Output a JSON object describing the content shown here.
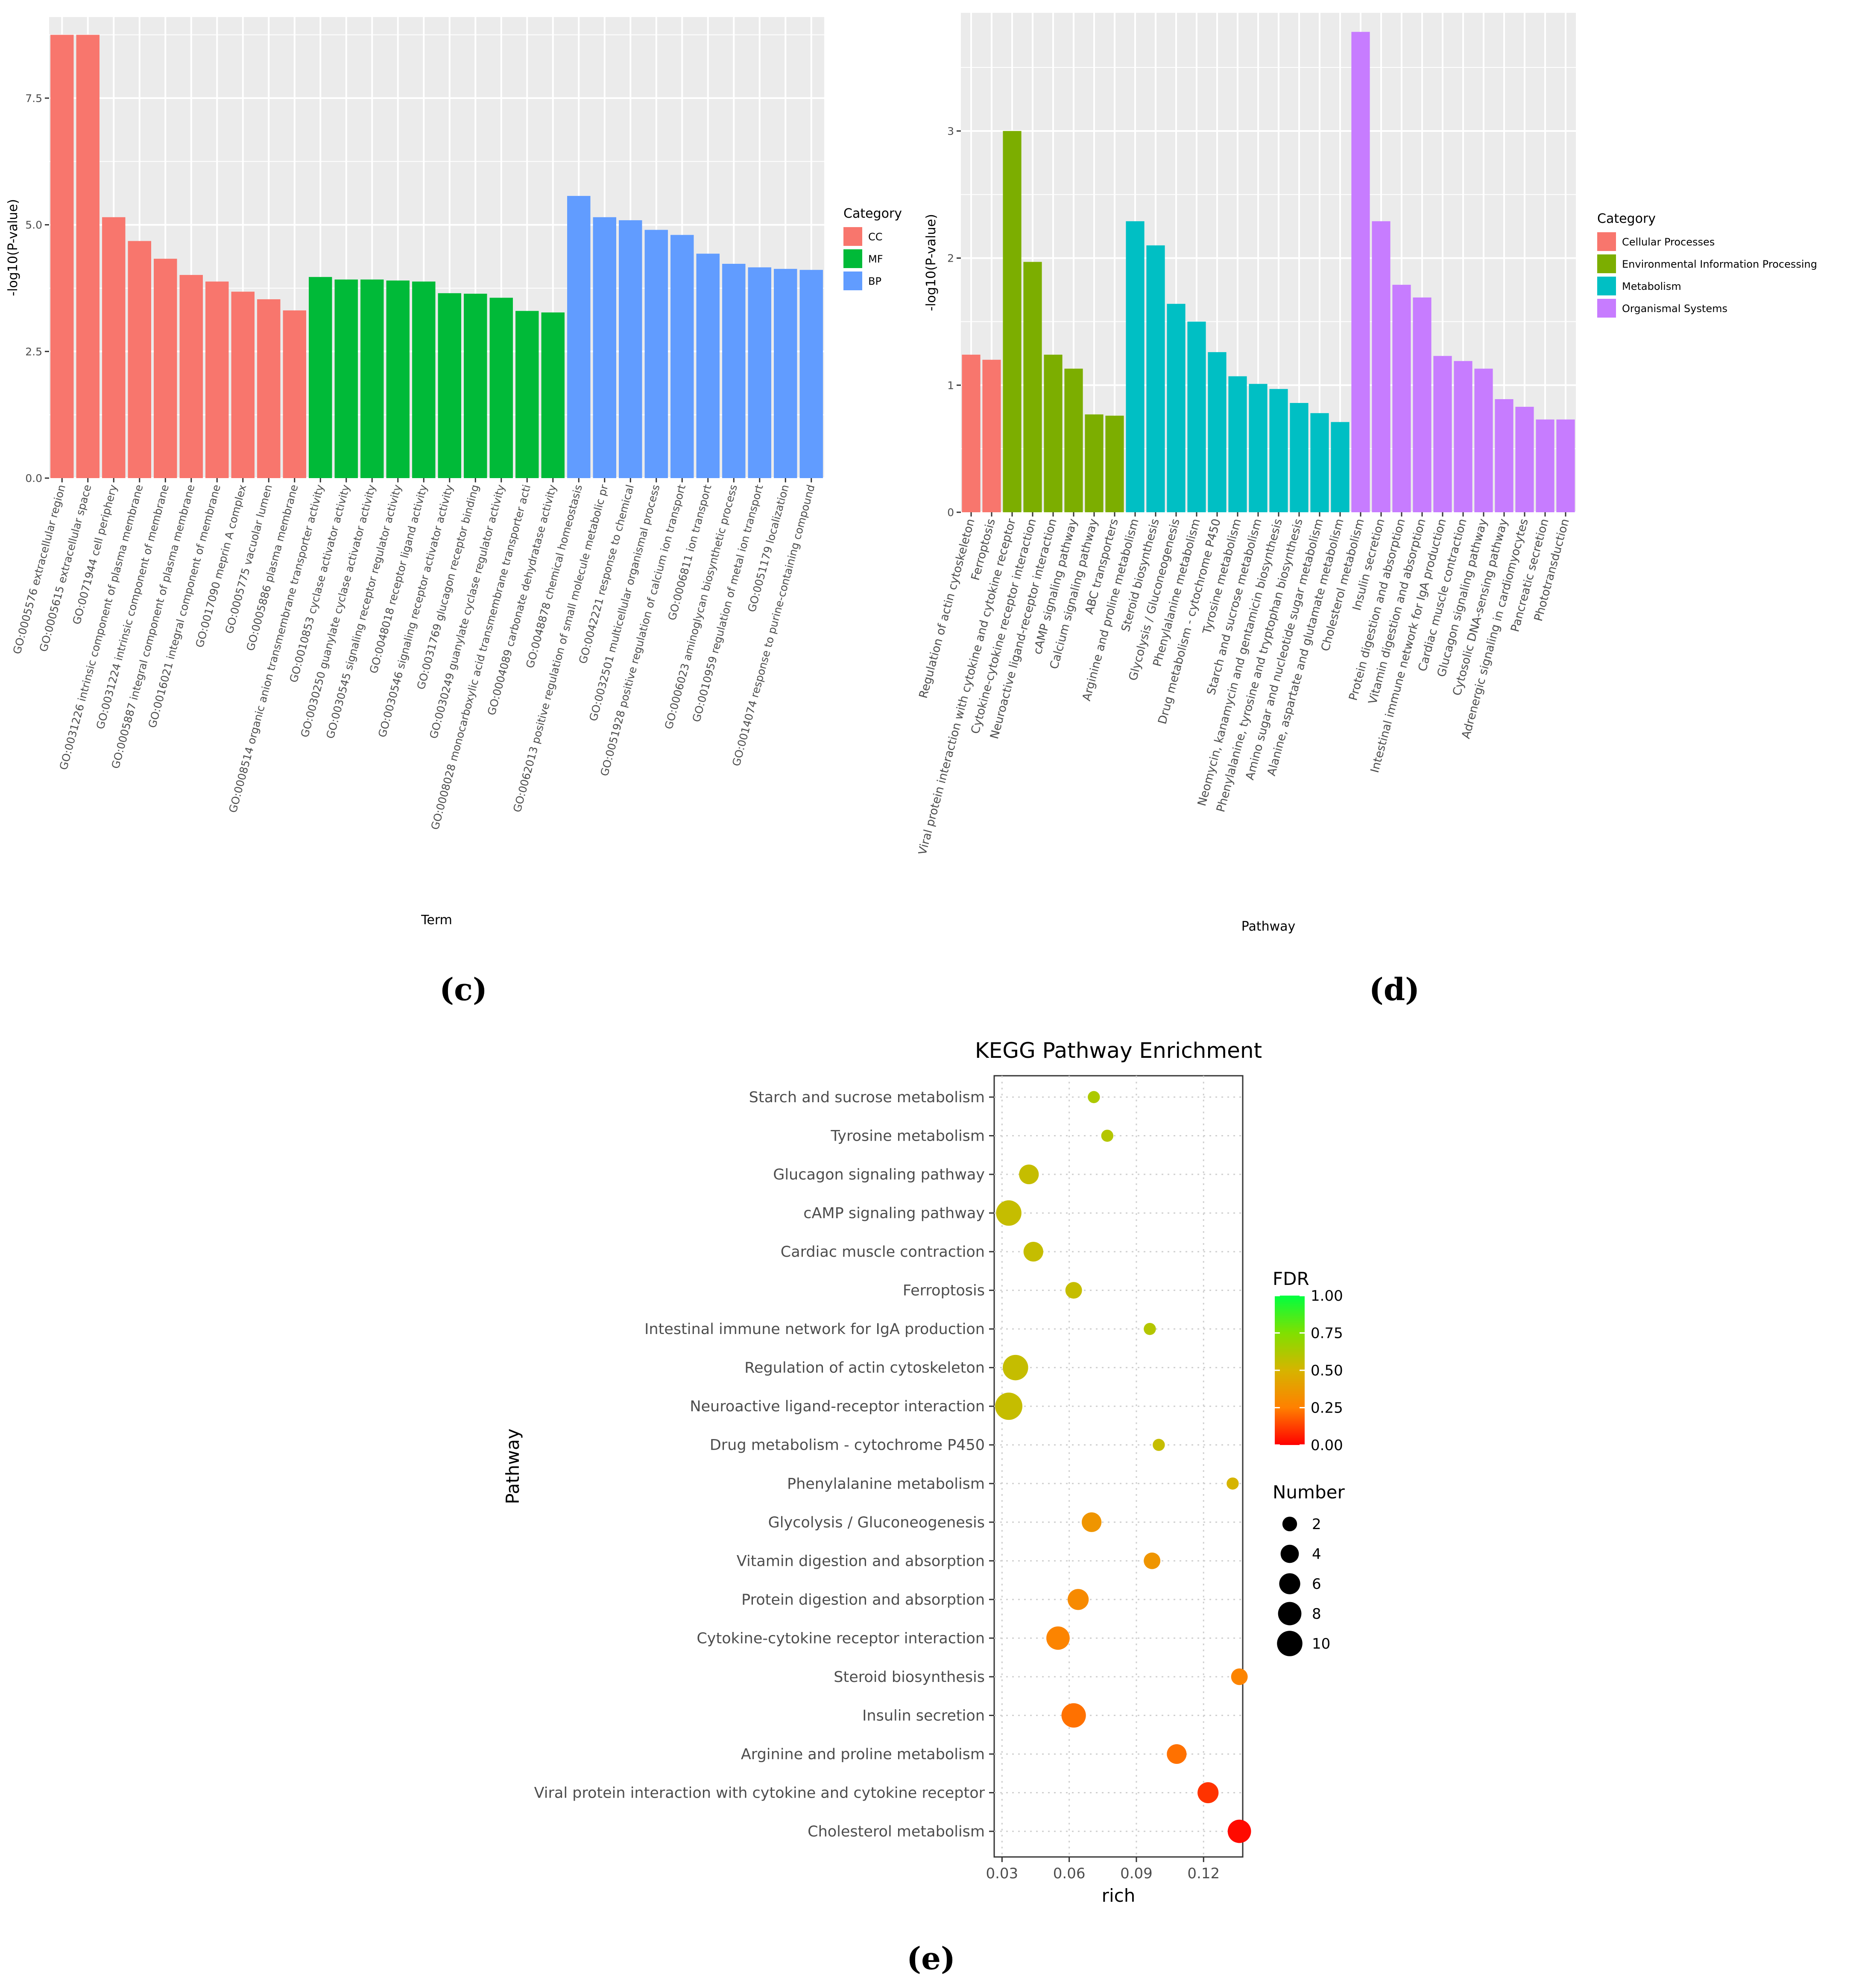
{
  "panel_labels": {
    "c": "(c)",
    "d": "(d)",
    "e": "(e)"
  },
  "colors": {
    "panel_bg": "#ebebeb",
    "grid": "#ffffff",
    "cc": "#F8766D",
    "mf": "#00BA38",
    "bp": "#619CFF",
    "cellular": "#F8766D",
    "env": "#7CAE00",
    "metab": "#00BFC4",
    "organismal": "#C77CFF"
  },
  "chart_data": [
    {
      "id": "c",
      "type": "bar",
      "xlabel": "Term",
      "ylabel": "-log10(P-value)",
      "ylim": [
        0,
        9.1
      ],
      "yticks": [
        0.0,
        2.5,
        5.0,
        7.5
      ],
      "ytick_labels": [
        "0.0",
        "2.5",
        "5.0",
        "7.5"
      ],
      "legend": {
        "title": "Category",
        "position": "right",
        "entries": [
          {
            "label": "CC",
            "key": "cc"
          },
          {
            "label": "MF",
            "key": "mf"
          },
          {
            "label": "BP",
            "key": "bp"
          }
        ]
      },
      "bars": [
        {
          "label": "GO:0005576 extracellular region",
          "value": 8.75,
          "cat": "cc"
        },
        {
          "label": "GO:0005615 extracellular space",
          "value": 8.75,
          "cat": "cc"
        },
        {
          "label": "GO:0071944 cell periphery",
          "value": 5.15,
          "cat": "cc"
        },
        {
          "label": "GO:0031226 intrinsic component of plasma membrane",
          "value": 4.68,
          "cat": "cc"
        },
        {
          "label": "GO:0031224 intrinsic component of membrane",
          "value": 4.33,
          "cat": "cc"
        },
        {
          "label": "GO:0005887 integral component of plasma membrane",
          "value": 4.01,
          "cat": "cc"
        },
        {
          "label": "GO:0016021 integral component of membrane",
          "value": 3.88,
          "cat": "cc"
        },
        {
          "label": "GO:0017090 meprin A complex",
          "value": 3.68,
          "cat": "cc"
        },
        {
          "label": "GO:0005775 vacuolar lumen",
          "value": 3.53,
          "cat": "cc"
        },
        {
          "label": "GO:0005886 plasma membrane",
          "value": 3.31,
          "cat": "cc"
        },
        {
          "label": "GO:0008514 organic anion transmembrane transporter activity",
          "value": 3.97,
          "cat": "mf"
        },
        {
          "label": "GO:0010853 cyclase activator activity",
          "value": 3.92,
          "cat": "mf"
        },
        {
          "label": "GO:0030250 guanylate cyclase activator activity",
          "value": 3.92,
          "cat": "mf"
        },
        {
          "label": "GO:0030545 signaling receptor regulator activity",
          "value": 3.9,
          "cat": "mf"
        },
        {
          "label": "GO:0048018 receptor ligand activity",
          "value": 3.88,
          "cat": "mf"
        },
        {
          "label": "GO:0030546 signaling receptor activator activity",
          "value": 3.65,
          "cat": "mf"
        },
        {
          "label": "GO:0031769 glucagon receptor binding",
          "value": 3.64,
          "cat": "mf"
        },
        {
          "label": "GO:0030249 guanylate cyclase regulator activity",
          "value": 3.56,
          "cat": "mf"
        },
        {
          "label": "GO:0008028 monocarboxylic acid transmembrane transporter acti",
          "value": 3.3,
          "cat": "mf"
        },
        {
          "label": "GO:0004089 carbonate dehydratase activity",
          "value": 3.27,
          "cat": "mf"
        },
        {
          "label": "GO:0048878 chemical homeostasis",
          "value": 5.57,
          "cat": "bp"
        },
        {
          "label": "GO:0062013 positive regulation of small molecule metabolic pr",
          "value": 5.15,
          "cat": "bp"
        },
        {
          "label": "GO:0042221 response to chemical",
          "value": 5.09,
          "cat": "bp"
        },
        {
          "label": "GO:0032501 multicellular organismal process",
          "value": 4.9,
          "cat": "bp"
        },
        {
          "label": "GO:0051928 positive regulation of calcium ion transport",
          "value": 4.8,
          "cat": "bp"
        },
        {
          "label": "GO:0006811 ion transport",
          "value": 4.43,
          "cat": "bp"
        },
        {
          "label": "GO:0006023 aminoglycan biosynthetic process",
          "value": 4.23,
          "cat": "bp"
        },
        {
          "label": "GO:0010959 regulation of metal ion transport",
          "value": 4.16,
          "cat": "bp"
        },
        {
          "label": "GO:0051179 localization",
          "value": 4.13,
          "cat": "bp"
        },
        {
          "label": "GO:0014074 response to purine-containing compound",
          "value": 4.11,
          "cat": "bp"
        }
      ]
    },
    {
      "id": "d",
      "type": "bar",
      "xlabel": "Pathway",
      "ylabel": "-log10(P-value)",
      "ylim": [
        0,
        3.93
      ],
      "yticks": [
        0,
        1,
        2,
        3
      ],
      "ytick_labels": [
        "0",
        "1",
        "2",
        "3"
      ],
      "legend": {
        "title": "Category",
        "position": "right",
        "entries": [
          {
            "label": "Cellular Processes",
            "key": "cellular"
          },
          {
            "label": "Environmental Information Processing",
            "key": "env"
          },
          {
            "label": "Metabolism",
            "key": "metab"
          },
          {
            "label": "Organismal Systems",
            "key": "organismal"
          }
        ]
      },
      "bars": [
        {
          "label": "Regulation of actin cytoskeleton",
          "value": 1.24,
          "cat": "cellular"
        },
        {
          "label": "Ferroptosis",
          "value": 1.2,
          "cat": "cellular"
        },
        {
          "label": "Viral protein interaction with cytokine and cytokine receptor",
          "value": 3.0,
          "cat": "env"
        },
        {
          "label": "Cytokine-cytokine receptor interaction",
          "value": 1.97,
          "cat": "env"
        },
        {
          "label": "Neuroactive ligand-receptor interaction",
          "value": 1.24,
          "cat": "env"
        },
        {
          "label": "cAMP signaling pathway",
          "value": 1.13,
          "cat": "env"
        },
        {
          "label": "Calcium signaling pathway",
          "value": 0.77,
          "cat": "env"
        },
        {
          "label": "ABC transporters",
          "value": 0.76,
          "cat": "env"
        },
        {
          "label": "Arginine and proline metabolism",
          "value": 2.29,
          "cat": "metab"
        },
        {
          "label": "Steroid biosynthesis",
          "value": 2.1,
          "cat": "metab"
        },
        {
          "label": "Glycolysis / Gluconeogenesis",
          "value": 1.64,
          "cat": "metab"
        },
        {
          "label": "Phenylalanine metabolism",
          "value": 1.5,
          "cat": "metab"
        },
        {
          "label": "Drug metabolism - cytochrome P450",
          "value": 1.26,
          "cat": "metab"
        },
        {
          "label": "Tyrosine metabolism",
          "value": 1.07,
          "cat": "metab"
        },
        {
          "label": "Starch and sucrose metabolism",
          "value": 1.01,
          "cat": "metab"
        },
        {
          "label": "Neomycin, kanamycin and gentamicin biosynthesis",
          "value": 0.97,
          "cat": "metab"
        },
        {
          "label": "Phenylalanine, tyrosine and tryptophan biosynthesis",
          "value": 0.86,
          "cat": "metab"
        },
        {
          "label": "Amino sugar and nucleotide sugar metabolism",
          "value": 0.78,
          "cat": "metab"
        },
        {
          "label": "Alanine, aspartate and glutamate metabolism",
          "value": 0.71,
          "cat": "metab"
        },
        {
          "label": "Cholesterol metabolism",
          "value": 3.78,
          "cat": "organismal"
        },
        {
          "label": "Insulin secretion",
          "value": 2.29,
          "cat": "organismal"
        },
        {
          "label": "Protein digestion and absorption",
          "value": 1.79,
          "cat": "organismal"
        },
        {
          "label": "Vitamin digestion and absorption",
          "value": 1.69,
          "cat": "organismal"
        },
        {
          "label": "Intestinal immune network for IgA production",
          "value": 1.23,
          "cat": "organismal"
        },
        {
          "label": "Cardiac muscle contraction",
          "value": 1.19,
          "cat": "organismal"
        },
        {
          "label": "Glucagon signaling pathway",
          "value": 1.13,
          "cat": "organismal"
        },
        {
          "label": "Cytosolic DNA-sensing pathway",
          "value": 0.89,
          "cat": "organismal"
        },
        {
          "label": "Adrenergic signaling in cardiomyocytes",
          "value": 0.83,
          "cat": "organismal"
        },
        {
          "label": "Pancreatic secretion",
          "value": 0.73,
          "cat": "organismal"
        },
        {
          "label": "Phototransduction",
          "value": 0.73,
          "cat": "organismal"
        }
      ]
    },
    {
      "id": "e",
      "type": "scatter",
      "title": "KEGG Pathway Enrichment",
      "xlabel": "rich",
      "ylabel": "Pathway",
      "xlim": [
        0.0265,
        0.1375
      ],
      "xticks": [
        0.03,
        0.06,
        0.09,
        0.12
      ],
      "xtick_labels": [
        "0.03",
        "0.06",
        "0.09",
        "0.12"
      ],
      "fdr_legend": {
        "title": "FDR",
        "ticks": [
          1.0,
          0.75,
          0.5,
          0.25,
          0.0
        ],
        "tick_labels": [
          "1.00",
          "0.75",
          "0.50",
          "0.25",
          "0.00"
        ]
      },
      "size_legend": {
        "title": "Number",
        "values": [
          2,
          4,
          6,
          8,
          10
        ],
        "labels": [
          "2",
          "4",
          "6",
          "8",
          "10"
        ]
      },
      "points": [
        {
          "pathway": "Starch and sucrose metabolism",
          "rich": 0.071,
          "number": 1,
          "fdr": 0.62
        },
        {
          "pathway": "Tyrosine metabolism",
          "rich": 0.077,
          "number": 1,
          "fdr": 0.6
        },
        {
          "pathway": "Glucagon signaling pathway",
          "rich": 0.042,
          "number": 5,
          "fdr": 0.55
        },
        {
          "pathway": "cAMP signaling pathway",
          "rich": 0.033,
          "number": 10,
          "fdr": 0.55
        },
        {
          "pathway": "Cardiac muscle contraction",
          "rich": 0.044,
          "number": 5,
          "fdr": 0.55
        },
        {
          "pathway": "Ferroptosis",
          "rich": 0.062,
          "number": 3,
          "fdr": 0.55
        },
        {
          "pathway": "Intestinal immune network for IgA production",
          "rich": 0.096,
          "number": 1,
          "fdr": 0.6
        },
        {
          "pathway": "Regulation of actin cytoskeleton",
          "rich": 0.036,
          "number": 10,
          "fdr": 0.55
        },
        {
          "pathway": "Neuroactive ligand-receptor interaction",
          "rich": 0.033,
          "number": 12,
          "fdr": 0.55
        },
        {
          "pathway": "Drug metabolism - cytochrome P450",
          "rich": 0.1,
          "number": 1,
          "fdr": 0.55
        },
        {
          "pathway": "Phenylalanine metabolism",
          "rich": 0.133,
          "number": 1,
          "fdr": 0.5
        },
        {
          "pathway": "Glycolysis / Gluconeogenesis",
          "rich": 0.07,
          "number": 5,
          "fdr": 0.35
        },
        {
          "pathway": "Vitamin digestion and absorption",
          "rich": 0.097,
          "number": 3,
          "fdr": 0.35
        },
        {
          "pathway": "Protein digestion and absorption",
          "rich": 0.064,
          "number": 6,
          "fdr": 0.3
        },
        {
          "pathway": "Cytokine-cytokine receptor interaction",
          "rich": 0.055,
          "number": 8,
          "fdr": 0.27
        },
        {
          "pathway": "Steroid biosynthesis",
          "rich": 0.136,
          "number": 3,
          "fdr": 0.27
        },
        {
          "pathway": "Insulin secretion",
          "rich": 0.062,
          "number": 9,
          "fdr": 0.22
        },
        {
          "pathway": "Arginine and proline metabolism",
          "rich": 0.108,
          "number": 5,
          "fdr": 0.22
        },
        {
          "pathway": "Viral protein interaction with cytokine and cytokine receptor",
          "rich": 0.122,
          "number": 6,
          "fdr": 0.1
        },
        {
          "pathway": "Cholesterol metabolism",
          "rich": 0.136,
          "number": 8,
          "fdr": 0.02
        }
      ]
    }
  ]
}
